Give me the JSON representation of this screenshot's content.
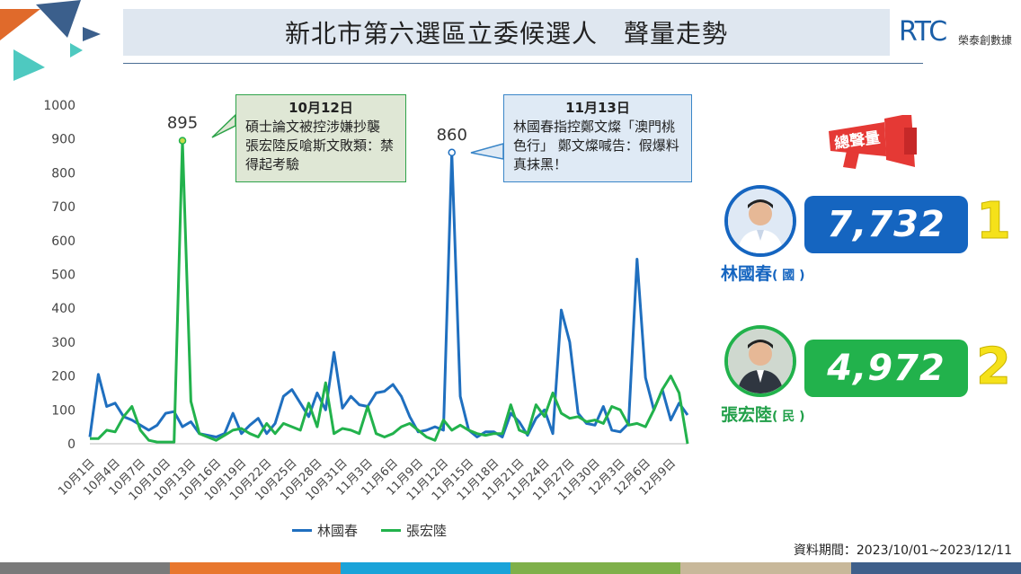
{
  "title": "新北市第六選區立委候選人　聲量走勢",
  "logo": {
    "mark": "RTC",
    "name": "榮泰創數據"
  },
  "source": "資料期間：2023/10/01~2023/12/11",
  "total_label": "總聲量",
  "candidates": [
    {
      "name": "林國春",
      "party": "( 國 )",
      "total": "7,732",
      "rank": "1",
      "color": "#1565c0"
    },
    {
      "name": "張宏陸",
      "party": "( 民 )",
      "total": "4,972",
      "rank": "2",
      "color": "#22b24c"
    }
  ],
  "callouts": [
    {
      "date": "10月12日",
      "text": "碩士論文被控涉嫌抄襲　張宏陸反嗆斯文敗類：禁得起考驗"
    },
    {
      "date": "11月13日",
      "text": "林國春指控鄭文燦「澳門桃色行」 鄭文燦喊告：假爆料真抹黑！"
    }
  ],
  "chart_data": {
    "type": "line",
    "ylim": [
      0,
      1000
    ],
    "yticks": [
      0,
      100,
      200,
      300,
      400,
      500,
      600,
      700,
      800,
      900,
      1000
    ],
    "x_tick_labels": [
      "10月1日",
      "10月4日",
      "10月7日",
      "10月10日",
      "10月13日",
      "10月16日",
      "10月19日",
      "10月22日",
      "10月25日",
      "10月28日",
      "10月31日",
      "11月3日",
      "11月6日",
      "11月9日",
      "11月12日",
      "11月15日",
      "11月18日",
      "11月21日",
      "11月24日",
      "11月27日",
      "11月30日",
      "12月3日",
      "12月6日",
      "12月9日"
    ],
    "grid": false,
    "legend_position": "bottom",
    "annotations": [
      {
        "series": 1,
        "index": 11,
        "label": "895"
      },
      {
        "series": 0,
        "index": 43,
        "label": "860"
      }
    ],
    "series": [
      {
        "name": "林國春",
        "color": "#1f6fbf",
        "values": [
          20,
          205,
          110,
          120,
          80,
          70,
          55,
          40,
          55,
          90,
          95,
          50,
          65,
          30,
          25,
          20,
          30,
          90,
          30,
          55,
          75,
          30,
          60,
          140,
          160,
          120,
          80,
          150,
          100,
          270,
          105,
          140,
          115,
          110,
          150,
          155,
          175,
          140,
          80,
          35,
          40,
          50,
          40,
          860,
          140,
          40,
          20,
          35,
          35,
          20,
          90,
          65,
          25,
          75,
          100,
          30,
          395,
          300,
          90,
          60,
          55,
          110,
          40,
          35,
          60,
          545,
          195,
          100,
          160,
          70,
          120,
          85
        ],
        "x_start": "10月1日"
      },
      {
        "name": "張宏陸",
        "color": "#22b24c",
        "values": [
          15,
          15,
          40,
          35,
          80,
          110,
          40,
          10,
          5,
          5,
          5,
          895,
          125,
          30,
          20,
          10,
          25,
          40,
          45,
          30,
          20,
          60,
          30,
          60,
          50,
          40,
          120,
          50,
          180,
          30,
          45,
          40,
          30,
          110,
          30,
          20,
          30,
          50,
          60,
          40,
          20,
          10,
          70,
          40,
          55,
          40,
          30,
          25,
          30,
          30,
          115,
          40,
          30,
          115,
          80,
          150,
          90,
          75,
          80,
          65,
          70,
          60,
          110,
          100,
          55,
          60,
          50,
          100,
          160,
          200,
          150,
          0
        ],
        "x_start": "10月1日"
      }
    ]
  },
  "colors": {
    "accent_blue": "#1565c0",
    "accent_green": "#22b24c",
    "rank_yellow": "#f5e11a",
    "badge_red": "#e53935"
  },
  "bottom_bar_colors": [
    "#7a7a7a",
    "#e8772e",
    "#1aa3d9",
    "#7fb04a",
    "#c8b89a",
    "#3f5f8a"
  ]
}
